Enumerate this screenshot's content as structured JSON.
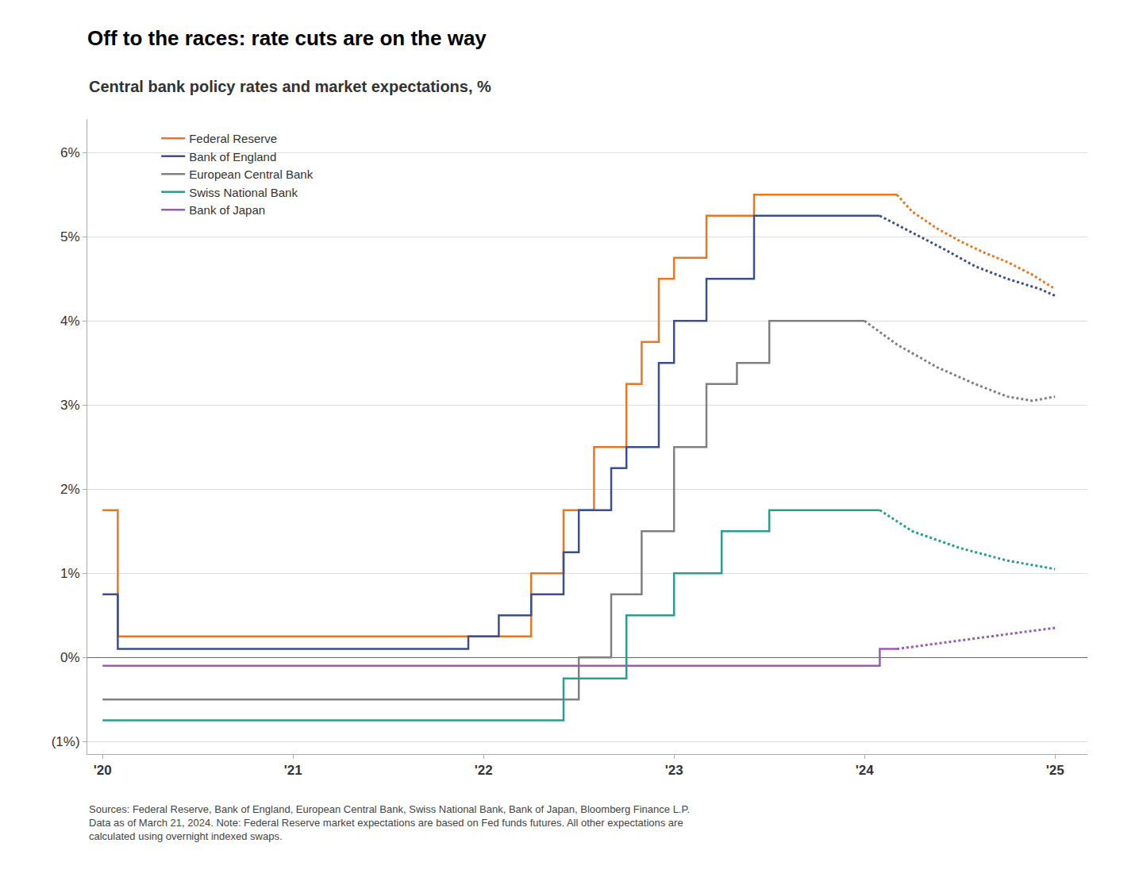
{
  "chart_data": {
    "type": "line",
    "title": "Off to the races: rate cuts are on the way",
    "subtitle": "Central bank policy rates and market expectations, %",
    "footnote": "Sources: Federal Reserve, Bank of England, European Central Bank, Swiss National Bank, Bank of Japan, Bloomberg Finance L.P.\nData as of March 21, 2024. Note: Federal Reserve market expectations are based on Fed funds futures. All other expectations are\ncalculated using overnight indexed swaps.",
    "series": [
      {
        "name": "Federal Reserve",
        "color": "#E87722",
        "line_style": "solid",
        "x": [
          2020.0,
          2020.08,
          2020.08,
          2020.33,
          2020.33,
          2022.25,
          2022.25,
          2022.42,
          2022.42,
          2022.58,
          2022.58,
          2022.75,
          2022.75,
          2022.83,
          2022.83,
          2022.92,
          2022.92,
          2023.0,
          2023.0,
          2023.17,
          2023.17,
          2023.42,
          2023.42,
          2024.17
        ],
        "values": [
          1.75,
          1.75,
          0.25,
          0.25,
          0.25,
          0.25,
          1.0,
          1.0,
          1.75,
          1.75,
          2.5,
          2.5,
          3.25,
          3.25,
          3.75,
          3.75,
          4.5,
          4.5,
          4.75,
          4.75,
          5.25,
          5.25,
          5.5,
          5.5
        ]
      },
      {
        "name": "Bank of England",
        "color": "#3B4F8C",
        "line_style": "solid",
        "x": [
          2020.0,
          2020.08,
          2020.08,
          2020.33,
          2020.33,
          2021.92,
          2021.92,
          2022.08,
          2022.08,
          2022.25,
          2022.25,
          2022.42,
          2022.42,
          2022.5,
          2022.5,
          2022.67,
          2022.67,
          2022.75,
          2022.75,
          2022.92,
          2022.92,
          2023.0,
          2023.0,
          2023.17,
          2023.17,
          2023.42,
          2023.42,
          2024.08
        ],
        "values": [
          0.75,
          0.75,
          0.1,
          0.1,
          0.1,
          0.1,
          0.25,
          0.25,
          0.5,
          0.5,
          0.75,
          0.75,
          1.25,
          1.25,
          1.75,
          1.75,
          2.25,
          2.25,
          2.5,
          2.5,
          3.5,
          3.5,
          4.0,
          4.0,
          4.5,
          4.5,
          5.25,
          5.25
        ]
      },
      {
        "name": "European Central Bank",
        "color": "#808080",
        "line_style": "solid",
        "x": [
          2020.0,
          2022.5,
          2022.5,
          2022.67,
          2022.67,
          2022.83,
          2022.83,
          2023.0,
          2023.0,
          2023.17,
          2023.17,
          2023.33,
          2023.33,
          2023.5,
          2023.5,
          2024.0
        ],
        "values": [
          -0.5,
          -0.5,
          0.0,
          0.0,
          0.75,
          0.75,
          1.5,
          1.5,
          2.5,
          2.5,
          3.25,
          3.25,
          3.5,
          3.5,
          4.0,
          4.0
        ]
      },
      {
        "name": "Swiss National Bank",
        "color": "#2A9D8F",
        "line_style": "solid",
        "x": [
          2020.0,
          2022.42,
          2022.42,
          2022.75,
          2022.75,
          2023.0,
          2023.0,
          2023.25,
          2023.25,
          2023.5,
          2023.5,
          2024.08
        ],
        "values": [
          -0.75,
          -0.75,
          -0.25,
          -0.25,
          0.5,
          0.5,
          1.0,
          1.0,
          1.5,
          1.5,
          1.75,
          1.75
        ]
      },
      {
        "name": "Bank of Japan",
        "color": "#9B59B6",
        "line_style": "solid",
        "x": [
          2020.0,
          2024.08,
          2024.08,
          2024.17
        ],
        "values": [
          -0.1,
          -0.1,
          0.1,
          0.1
        ]
      },
      {
        "name": "Federal Reserve",
        "color": "#E87722",
        "line_style": "dotted",
        "x": [
          2024.17,
          2024.25,
          2024.38,
          2024.5,
          2024.62,
          2024.75,
          2024.88,
          2025.0
        ],
        "values": [
          5.5,
          5.3,
          5.1,
          4.95,
          4.82,
          4.7,
          4.55,
          4.38
        ]
      },
      {
        "name": "Bank of England",
        "color": "#3B4F8C",
        "line_style": "dotted",
        "x": [
          2024.08,
          2024.25,
          2024.42,
          2024.58,
          2024.75,
          2024.92,
          2025.0
        ],
        "values": [
          5.25,
          5.05,
          4.85,
          4.65,
          4.5,
          4.38,
          4.3
        ]
      },
      {
        "name": "European Central Bank",
        "color": "#808080",
        "line_style": "dotted",
        "x": [
          2024.0,
          2024.17,
          2024.38,
          2024.58,
          2024.75,
          2024.88,
          2025.0
        ],
        "values": [
          4.0,
          3.72,
          3.45,
          3.25,
          3.1,
          3.05,
          3.1
        ]
      },
      {
        "name": "Swiss National Bank",
        "color": "#2A9D8F",
        "line_style": "dotted",
        "x": [
          2024.08,
          2024.25,
          2024.5,
          2024.75,
          2025.0
        ],
        "values": [
          1.75,
          1.5,
          1.3,
          1.15,
          1.05
        ]
      },
      {
        "name": "Bank of Japan",
        "color": "#9B59B6",
        "line_style": "dotted",
        "x": [
          2024.17,
          2024.33,
          2024.5,
          2024.67,
          2024.83,
          2025.0
        ],
        "values": [
          0.1,
          0.15,
          0.2,
          0.25,
          0.3,
          0.35
        ]
      }
    ],
    "xlim": [
      2019.92,
      2025.17
    ],
    "ylim": [
      -1.15,
      6.4
    ],
    "xticks": [
      {
        "value": 2020,
        "label": "'20"
      },
      {
        "value": 2021,
        "label": "'21"
      },
      {
        "value": 2022,
        "label": "'22"
      },
      {
        "value": 2023,
        "label": "'23"
      },
      {
        "value": 2024,
        "label": "'24"
      },
      {
        "value": 2025,
        "label": "'25"
      }
    ],
    "yticks": [
      {
        "value": -1.0,
        "label": "(1%)"
      },
      {
        "value": 0.0,
        "label": "0%"
      },
      {
        "value": 1.0,
        "label": "1%"
      },
      {
        "value": 2.0,
        "label": "2%"
      },
      {
        "value": 3.0,
        "label": "3%"
      },
      {
        "value": 4.0,
        "label": "4%"
      },
      {
        "value": 5.0,
        "label": "5%"
      },
      {
        "value": 6.0,
        "label": "6%"
      }
    ],
    "grid": "y",
    "legend": "upper left"
  }
}
